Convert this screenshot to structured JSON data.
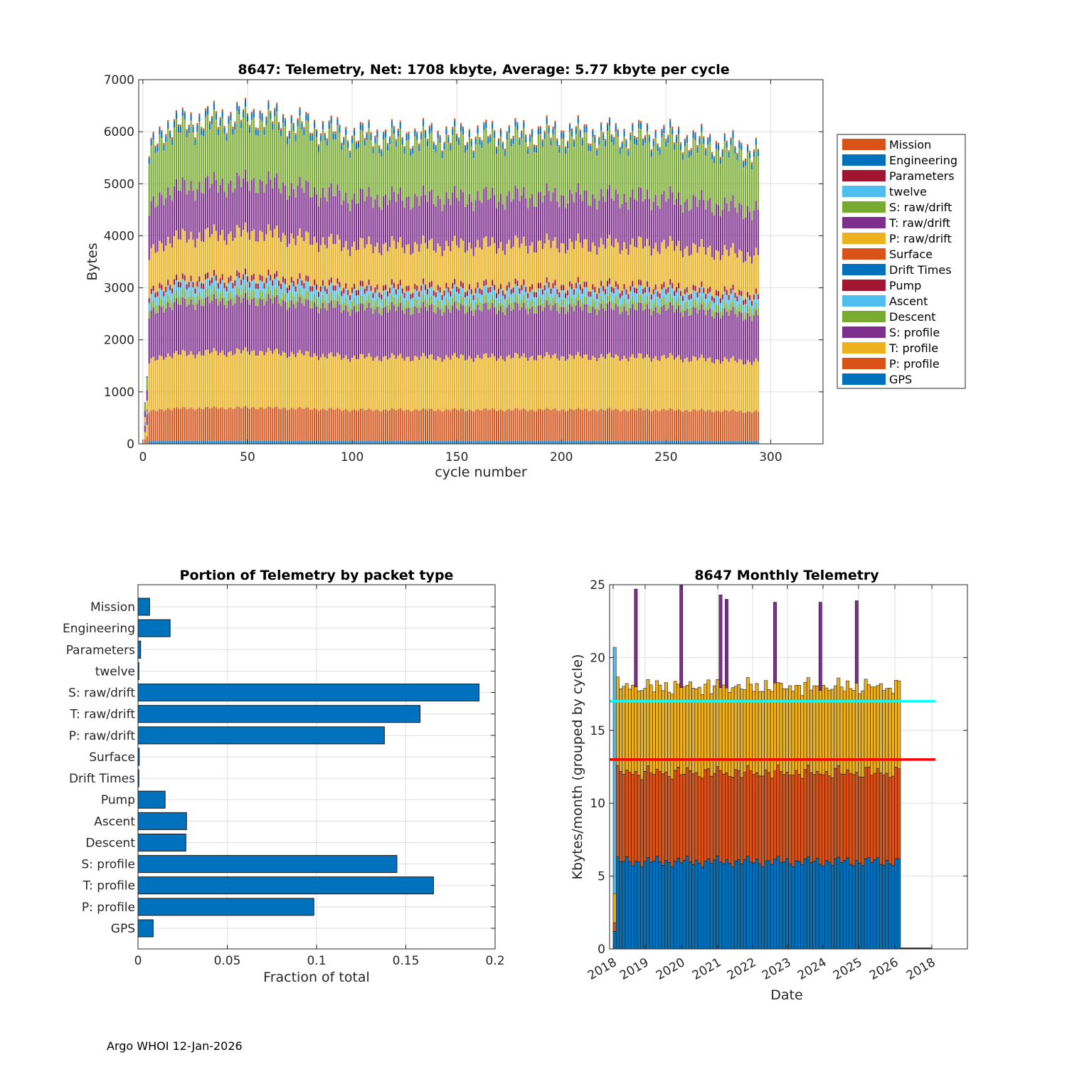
{
  "footer": "Argo WHOI 12-Jan-2026",
  "chart_data": [
    {
      "type": "bar",
      "stacked": true,
      "title": "8647: Telemetry, Net:   1708 kbyte,  Average: 5.77 kbyte per cycle",
      "xlabel": "cycle number",
      "ylabel": "Bytes",
      "xlim": [
        -2,
        325
      ],
      "ylim": [
        0,
        7000
      ],
      "xticks": [
        "0",
        "50",
        "100",
        "150",
        "200",
        "250",
        "300"
      ],
      "yticks": [
        "0",
        "1000",
        "2000",
        "3000",
        "4000",
        "5000",
        "6000",
        "7000"
      ],
      "legend_position": "right",
      "n_cycles": 294,
      "approx_stack_per_cycle_bytes": [
        {
          "name": "GPS",
          "value": 50
        },
        {
          "name": "P: profile",
          "value": 560
        },
        {
          "name": "T: profile",
          "value": 940
        },
        {
          "name": "S: profile",
          "value": 870
        },
        {
          "name": "Descent",
          "value": 140
        },
        {
          "name": "Ascent",
          "value": 160
        },
        {
          "name": "Pump",
          "value": 90
        },
        {
          "name": "Drift Times",
          "value": 5
        },
        {
          "name": "Surface",
          "value": 5
        },
        {
          "name": "P: raw/drift",
          "value": 730
        },
        {
          "name": "T: raw/drift",
          "value": 850
        },
        {
          "name": "S: raw/drift",
          "value": 1000
        },
        {
          "name": "twelve",
          "value": 5
        },
        {
          "name": "Parameters",
          "value": 8
        },
        {
          "name": "Engineering",
          "value": 100
        },
        {
          "name": "Mission",
          "value": 35
        }
      ],
      "approx_total_by_cycle": [
        {
          "cycle": 1,
          "value": 1150
        },
        {
          "cycle": 3,
          "value": 5600
        },
        {
          "cycle": 10,
          "value": 6100
        },
        {
          "cycle": 27,
          "value": 6250
        },
        {
          "cycle": 55,
          "value": 6350
        },
        {
          "cycle": 100,
          "value": 5950
        },
        {
          "cycle": 150,
          "value": 5950
        },
        {
          "cycle": 200,
          "value": 6000
        },
        {
          "cycle": 250,
          "value": 5950
        },
        {
          "cycle": 294,
          "value": 5650
        }
      ],
      "legend": [
        {
          "name": "Mission",
          "color": "#D95319"
        },
        {
          "name": "Engineering",
          "color": "#0072BD"
        },
        {
          "name": "Parameters",
          "color": "#A2142F"
        },
        {
          "name": "twelve",
          "color": "#4DBEEE"
        },
        {
          "name": "S: raw/drift",
          "color": "#77AC30"
        },
        {
          "name": "T: raw/drift",
          "color": "#7E2F8E"
        },
        {
          "name": "P: raw/drift",
          "color": "#EDB120"
        },
        {
          "name": "Surface",
          "color": "#D95319"
        },
        {
          "name": "Drift Times",
          "color": "#0072BD"
        },
        {
          "name": "Pump",
          "color": "#A2142F"
        },
        {
          "name": "Ascent",
          "color": "#4DBEEE"
        },
        {
          "name": "Descent",
          "color": "#77AC30"
        },
        {
          "name": "S: profile",
          "color": "#7E2F8E"
        },
        {
          "name": "T: profile",
          "color": "#EDB120"
        },
        {
          "name": "P: profile",
          "color": "#D95319"
        },
        {
          "name": "GPS",
          "color": "#0072BD"
        }
      ]
    },
    {
      "type": "bar",
      "orientation": "horizontal",
      "title": "Portion of Telemetry by packet type",
      "xlabel": "Fraction of total",
      "ylabel": "",
      "xlim": [
        0,
        0.2
      ],
      "xticks": [
        "0",
        "0.05",
        "0.1",
        "0.15",
        "0.2"
      ],
      "color": "#0072BD",
      "categories": [
        "Mission",
        "Engineering",
        "Parameters",
        "twelve",
        "S: raw/drift",
        "T: raw/drift",
        "P: raw/drift",
        "Surface",
        "Drift Times",
        "Pump",
        "Ascent",
        "Descent",
        "S: profile",
        "T: profile",
        "P: profile",
        "GPS"
      ],
      "values": [
        0.0065,
        0.018,
        0.0015,
        0.0005,
        0.191,
        0.158,
        0.138,
        0.0007,
        0.0005,
        0.0152,
        0.0272,
        0.0268,
        0.145,
        0.1655,
        0.0985,
        0.0085
      ]
    },
    {
      "type": "bar",
      "stacked": true,
      "title": "8647 Monthly Telemetry",
      "xlabel": "Date",
      "ylabel": "Kbytes/month (grouped by cycle)",
      "ylim": [
        0,
        25
      ],
      "yticks": [
        "0",
        "5",
        "10",
        "15",
        "20",
        "25"
      ],
      "xticks": [
        "2018",
        "2019",
        "2020",
        "2021",
        "2022",
        "2023",
        "2024",
        "2025",
        "2026",
        "2018"
      ],
      "months": 95,
      "series_colors": {
        "c1": "#0072BD",
        "c2": "#D95319",
        "c3": "#EDB120",
        "spike": "#7E2F8E",
        "first": "#4DBEEE"
      },
      "typical_stack_kbytes": {
        "c1": 6.0,
        "c2": 6.1,
        "c3": 5.9
      },
      "first_month": {
        "c1": 1.2,
        "c2": 0.6,
        "c3": 2.0
      },
      "first_month_total_light_blue": 20.7,
      "spikes": [
        {
          "month_index": 7,
          "value": 24.7
        },
        {
          "month_index": 22,
          "value": 25.0
        },
        {
          "month_index": 35,
          "value": 24.3
        },
        {
          "month_index": 37,
          "value": 24.0
        },
        {
          "month_index": 53,
          "value": 23.8
        },
        {
          "month_index": 68,
          "value": 23.8
        },
        {
          "month_index": 80,
          "value": 23.9
        }
      ],
      "reference_lines": [
        {
          "value": 17,
          "color": "#00FFFF"
        },
        {
          "value": 13,
          "color": "#FF0000"
        }
      ]
    }
  ]
}
